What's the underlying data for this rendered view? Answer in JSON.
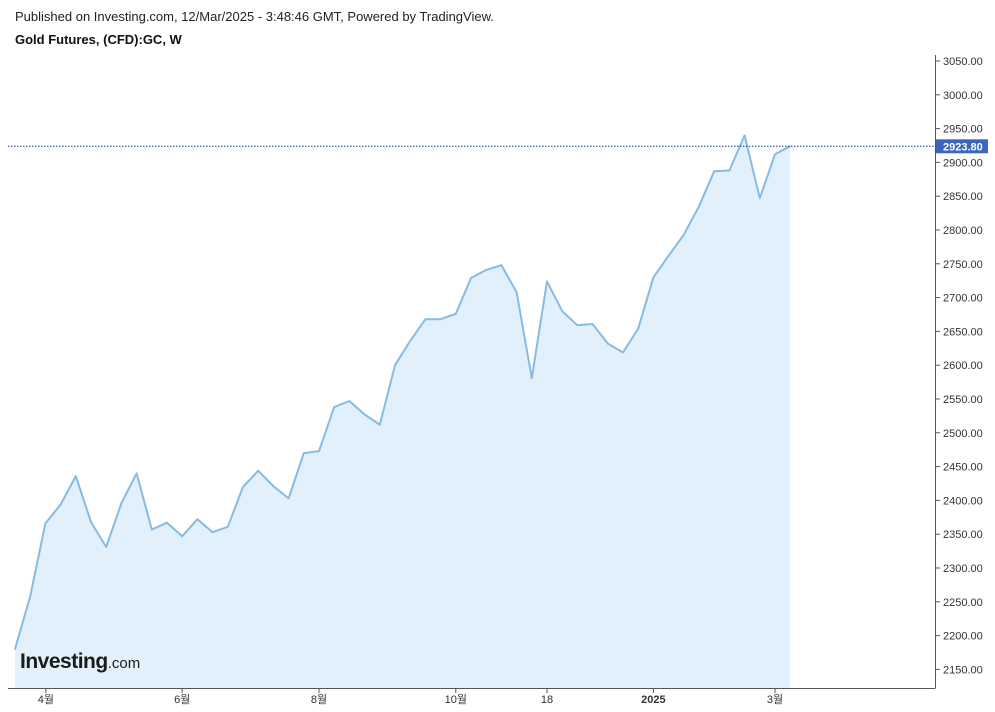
{
  "header": {
    "published": "Published on Investing.com, 12/Mar/2025 - 3:48:46 GMT, Powered by TradingView.",
    "title": "Gold Futures, (CFD):GC, W"
  },
  "logo": {
    "main": "Investing",
    "suffix": ".com"
  },
  "chart_data": {
    "type": "area",
    "title": "Gold Futures, (CFD):GC, W",
    "xlabel": "",
    "ylabel": "",
    "ylim": [
      2130,
      3055
    ],
    "yticks": [
      3050,
      3000,
      2950,
      2900,
      2850,
      2800,
      2750,
      2700,
      2650,
      2600,
      2550,
      2500,
      2450,
      2400,
      2350,
      2300,
      2250,
      2200,
      2150
    ],
    "ytick_labels": [
      "3050.00",
      "3000.00",
      "2950.00",
      "2900.00",
      "2850.00",
      "2800.00",
      "2750.00",
      "2700.00",
      "2650.00",
      "2600.00",
      "2550.00",
      "2500.00",
      "2450.00",
      "2400.00",
      "2350.00",
      "2300.00",
      "2250.00",
      "2200.00",
      "2150.00"
    ],
    "x_tick_labels": [
      {
        "label": "4월",
        "index": 2
      },
      {
        "label": "6월",
        "index": 11
      },
      {
        "label": "8월",
        "index": 20
      },
      {
        "label": "10월",
        "index": 29
      },
      {
        "label": "18",
        "index": 35
      },
      {
        "label": "2025",
        "index": 42
      },
      {
        "label": "3월",
        "index": 50
      }
    ],
    "last_value": 2923.8,
    "last_value_label": "2923.80",
    "series": [
      {
        "values": [
          2180,
          2258,
          2366,
          2394,
          2436,
          2368,
          2331,
          2396,
          2440,
          2357,
          2367,
          2347,
          2372,
          2353,
          2361,
          2420,
          2444,
          2421,
          2403,
          2470,
          2473,
          2538,
          2547,
          2527,
          2512,
          2600,
          2636,
          2668,
          2668,
          2676,
          2729,
          2741,
          2748,
          2708,
          2581,
          2724,
          2680,
          2659,
          2661,
          2632,
          2619,
          2654,
          2730,
          2762,
          2793,
          2835,
          2887,
          2888,
          2940,
          2847,
          2912,
          2923.8
        ]
      }
    ],
    "colors": {
      "line": "#85bbe6",
      "fill": "#e1f0fa",
      "last_line": "#1d3e9c",
      "last_badge": "#3c66bd",
      "axis": "#555555",
      "text": "#333333"
    },
    "grid": false
  }
}
